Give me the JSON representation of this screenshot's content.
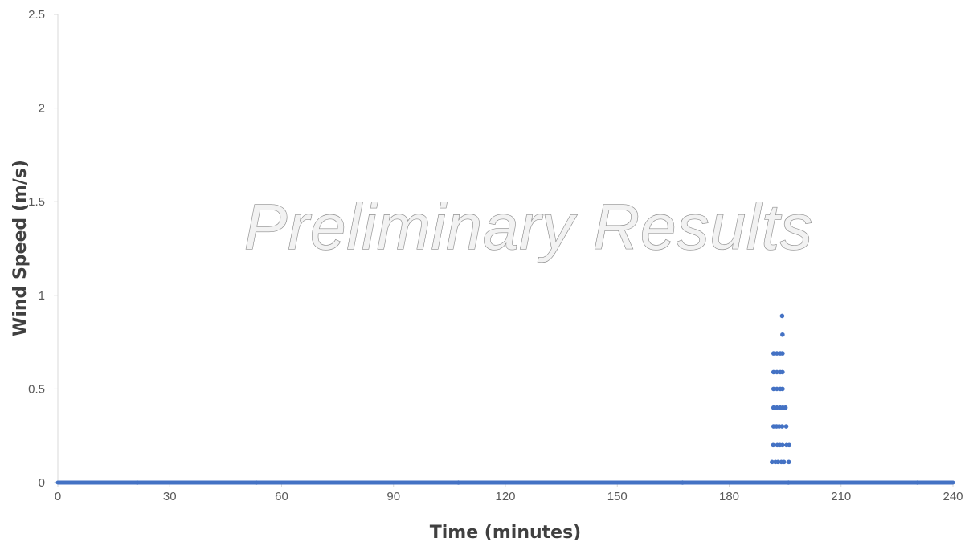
{
  "chart_data": {
    "type": "scatter",
    "title": "",
    "xlabel": "Time (minutes)",
    "ylabel": "Wind Speed (m/s)",
    "xlim": [
      0,
      240
    ],
    "ylim": [
      0,
      2.5
    ],
    "x_ticks": [
      "0",
      "30",
      "60",
      "90",
      "120",
      "150",
      "180",
      "210",
      "240"
    ],
    "y_ticks": [
      "0",
      "0.5",
      "1",
      "1.5",
      "2",
      "2.5"
    ],
    "grid": false,
    "legend": "none",
    "marker_color": "#4472c4",
    "baseline": {
      "x_start": 0,
      "x_end": 240,
      "y": 0
    },
    "series": [
      {
        "points": [
          [
            21.3,
            0.0
          ],
          [
            53.2,
            0.0
          ],
          [
            107.4,
            0.0
          ],
          [
            167.5,
            0.0
          ],
          [
            230.5,
            0.0
          ],
          [
            191.5,
            0.11
          ],
          [
            191.8,
            0.2
          ],
          [
            191.9,
            0.3
          ],
          [
            191.9,
            0.4
          ],
          [
            191.9,
            0.5
          ],
          [
            191.9,
            0.59
          ],
          [
            191.9,
            0.69
          ],
          [
            192.4,
            0.11
          ],
          [
            192.7,
            0.3
          ],
          [
            192.9,
            0.2
          ],
          [
            192.8,
            0.4
          ],
          [
            192.8,
            0.5
          ],
          [
            192.8,
            0.59
          ],
          [
            192.8,
            0.69
          ],
          [
            193.1,
            0.11
          ],
          [
            193.4,
            0.3
          ],
          [
            193.6,
            0.2
          ],
          [
            193.7,
            0.4
          ],
          [
            193.7,
            0.5
          ],
          [
            193.7,
            0.59
          ],
          [
            193.7,
            0.69
          ],
          [
            194.0,
            0.11
          ],
          [
            194.2,
            0.3
          ],
          [
            194.4,
            0.4
          ],
          [
            194.3,
            0.5
          ],
          [
            194.3,
            0.59
          ],
          [
            194.3,
            0.69
          ],
          [
            194.3,
            0.79
          ],
          [
            194.2,
            0.89
          ],
          [
            194.3,
            0.2
          ],
          [
            194.7,
            0.11
          ],
          [
            195.1,
            0.4
          ],
          [
            195.3,
            0.3
          ],
          [
            195.4,
            0.2
          ],
          [
            196.1,
            0.2
          ],
          [
            196.0,
            0.11
          ],
          [
            195.9,
            0.0
          ]
        ]
      }
    ]
  },
  "watermark": "Preliminary Results"
}
